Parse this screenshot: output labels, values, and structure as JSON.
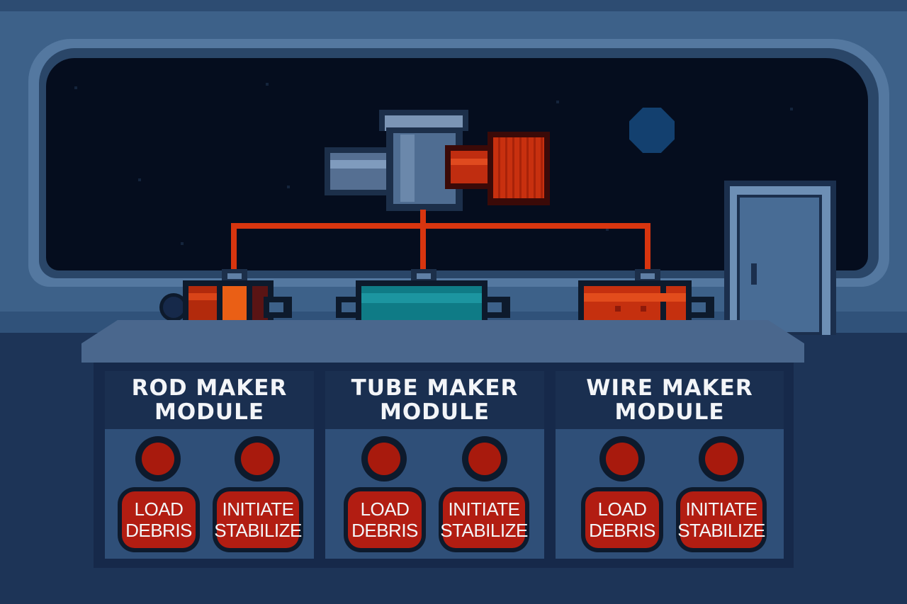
{
  "modules": [
    {
      "title_line1": "ROD MAKER",
      "title_line2": "MODULE",
      "load_button": {
        "line1": "LOAD",
        "line2": "DEBRIS"
      },
      "initiate_button": {
        "line1": "INITIATE",
        "line2": "STABILIZE"
      },
      "machine_color": "#d8350f"
    },
    {
      "title_line1": "TUBE MAKER",
      "title_line2": "MODULE",
      "load_button": {
        "line1": "LOAD",
        "line2": "DEBRIS"
      },
      "initiate_button": {
        "line1": "INITIATE",
        "line2": "STABILIZE"
      },
      "machine_color": "#0f7b86"
    },
    {
      "title_line1": "WIRE MAKER",
      "title_line2": "MODULE",
      "load_button": {
        "line1": "LOAD",
        "line2": "DEBRIS"
      },
      "initiate_button": {
        "line1": "INITIATE",
        "line2": "STABILIZE"
      },
      "machine_color": "#c5300f"
    }
  ],
  "colors": {
    "wall": "#3d6189",
    "space": "#050d1e",
    "pipe": "#d8350f",
    "indicator_light": "#a81a0d",
    "button_face": "#b21d12",
    "panel": "#2f4f78",
    "panel_header": "#1a2f50"
  },
  "icons": {
    "planet": "planet-icon",
    "door": "door-icon",
    "extruder": "extruder-machine-icon"
  }
}
